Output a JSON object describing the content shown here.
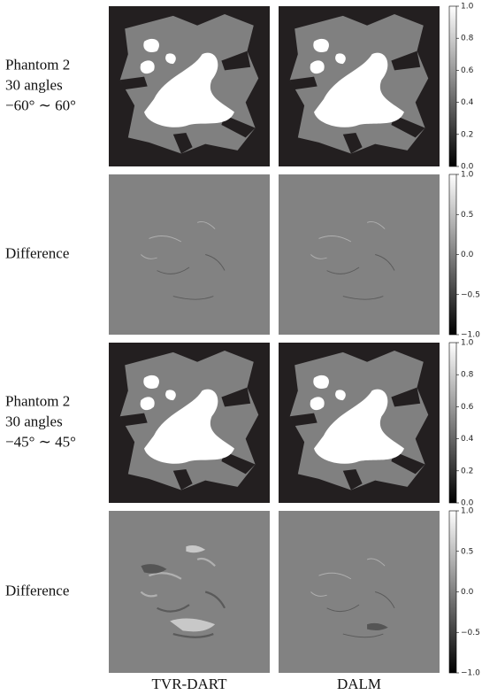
{
  "rows": [
    {
      "label": [
        "Phantom 2",
        "30 angles",
        "−60° ∼ 60°"
      ],
      "colorbar": {
        "lim": [
          0,
          1
        ],
        "ticks": [
          {
            "value": 0,
            "label": "0.0"
          },
          {
            "value": 0.2,
            "label": "0.2"
          },
          {
            "value": 0.4,
            "label": "0.4"
          },
          {
            "value": 0.6,
            "label": "0.6"
          },
          {
            "value": 0.8,
            "label": "0.8"
          },
          {
            "value": 1,
            "label": "1.0"
          }
        ]
      }
    },
    {
      "label": [
        "Difference"
      ],
      "colorbar": {
        "lim": [
          -1,
          1
        ],
        "ticks": [
          {
            "value": -1,
            "label": "−1.0"
          },
          {
            "value": -0.5,
            "label": "−0.5"
          },
          {
            "value": 0,
            "label": "0.0"
          },
          {
            "value": 0.5,
            "label": "0.5"
          },
          {
            "value": 1,
            "label": "1.0"
          }
        ]
      }
    },
    {
      "label": [
        "Phantom 2",
        "30 angles",
        "−45° ∼ 45°"
      ],
      "colorbar": {
        "lim": [
          0,
          1
        ],
        "ticks": [
          {
            "value": 0,
            "label": "0.0"
          },
          {
            "value": 0.2,
            "label": "0.2"
          },
          {
            "value": 0.4,
            "label": "0.4"
          },
          {
            "value": 0.6,
            "label": "0.6"
          },
          {
            "value": 0.8,
            "label": "0.8"
          },
          {
            "value": 1,
            "label": "1.0"
          }
        ]
      }
    },
    {
      "label": [
        "Difference"
      ],
      "colorbar": {
        "lim": [
          -1,
          1
        ],
        "ticks": [
          {
            "value": -1,
            "label": "−1.0"
          },
          {
            "value": -0.5,
            "label": "−0.5"
          },
          {
            "value": 0,
            "label": "0.0"
          },
          {
            "value": 0.5,
            "label": "0.5"
          },
          {
            "value": 1,
            "label": "1.0"
          }
        ]
      }
    }
  ],
  "columns": [
    "TVR-DART",
    "DALM"
  ]
}
